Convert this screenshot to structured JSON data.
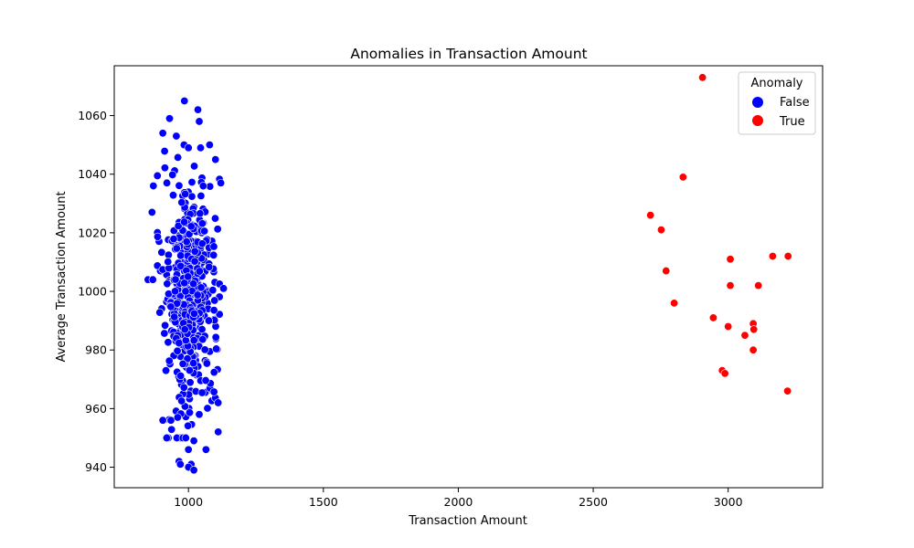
{
  "chart_data": {
    "type": "scatter",
    "title": "Anomalies in Transaction Amount",
    "xlabel": "Transaction Amount",
    "ylabel": "Average Transaction Amount",
    "xlim": [
      725,
      3350
    ],
    "ylim": [
      933,
      1077
    ],
    "xticks": [
      1000,
      1500,
      2000,
      2500,
      3000
    ],
    "yticks": [
      940,
      960,
      980,
      1000,
      1020,
      1040,
      1060
    ],
    "grid": false,
    "legend": {
      "title": "Anomaly",
      "placement": "top-right"
    },
    "series": [
      {
        "name": "False",
        "color": "#0000ff",
        "normal_cluster": {
          "n": 480,
          "x_mean": 1000,
          "x_sd": 50,
          "y_mean": 1000,
          "y_sd": 20,
          "seed": 12345
        },
        "points": [
          [
            985,
            1065
          ],
          [
            1035,
            1062
          ],
          [
            930,
            1059
          ],
          [
            1040,
            1058
          ],
          [
            905,
            1054
          ],
          [
            955,
            1053
          ],
          [
            1000,
            1049
          ],
          [
            1045,
            1049
          ],
          [
            1100,
            1045
          ],
          [
            920,
            1037
          ],
          [
            870,
            1036
          ],
          [
            1120,
            1037
          ],
          [
            865,
            1027
          ],
          [
            850,
            1004
          ],
          [
            868,
            1004
          ],
          [
            1130,
            1001
          ],
          [
            935,
            956
          ],
          [
            990,
            950
          ],
          [
            1020,
            949
          ],
          [
            1065,
            946
          ],
          [
            1000,
            946
          ],
          [
            965,
            942
          ],
          [
            970,
            941
          ],
          [
            1010,
            941
          ],
          [
            1000,
            940
          ],
          [
            1020,
            939
          ],
          [
            905,
            956
          ],
          [
            960,
            957
          ],
          [
            1040,
            958
          ],
          [
            1110,
            962
          ]
        ]
      },
      {
        "name": "True",
        "color": "#ff0000",
        "points": [
          [
            2905,
            1073
          ],
          [
            2833,
            1039
          ],
          [
            2712,
            1026
          ],
          [
            2752,
            1021
          ],
          [
            3165,
            1012
          ],
          [
            3222,
            1012
          ],
          [
            3008,
            1011
          ],
          [
            2770,
            1007
          ],
          [
            3008,
            1002
          ],
          [
            3112,
            1002
          ],
          [
            2800,
            996
          ],
          [
            2945,
            991
          ],
          [
            3093,
            989
          ],
          [
            3000,
            988
          ],
          [
            3095,
            987
          ],
          [
            3062,
            985
          ],
          [
            3093,
            980
          ],
          [
            2978,
            973
          ],
          [
            2988,
            972
          ],
          [
            3220,
            966
          ]
        ]
      }
    ]
  }
}
